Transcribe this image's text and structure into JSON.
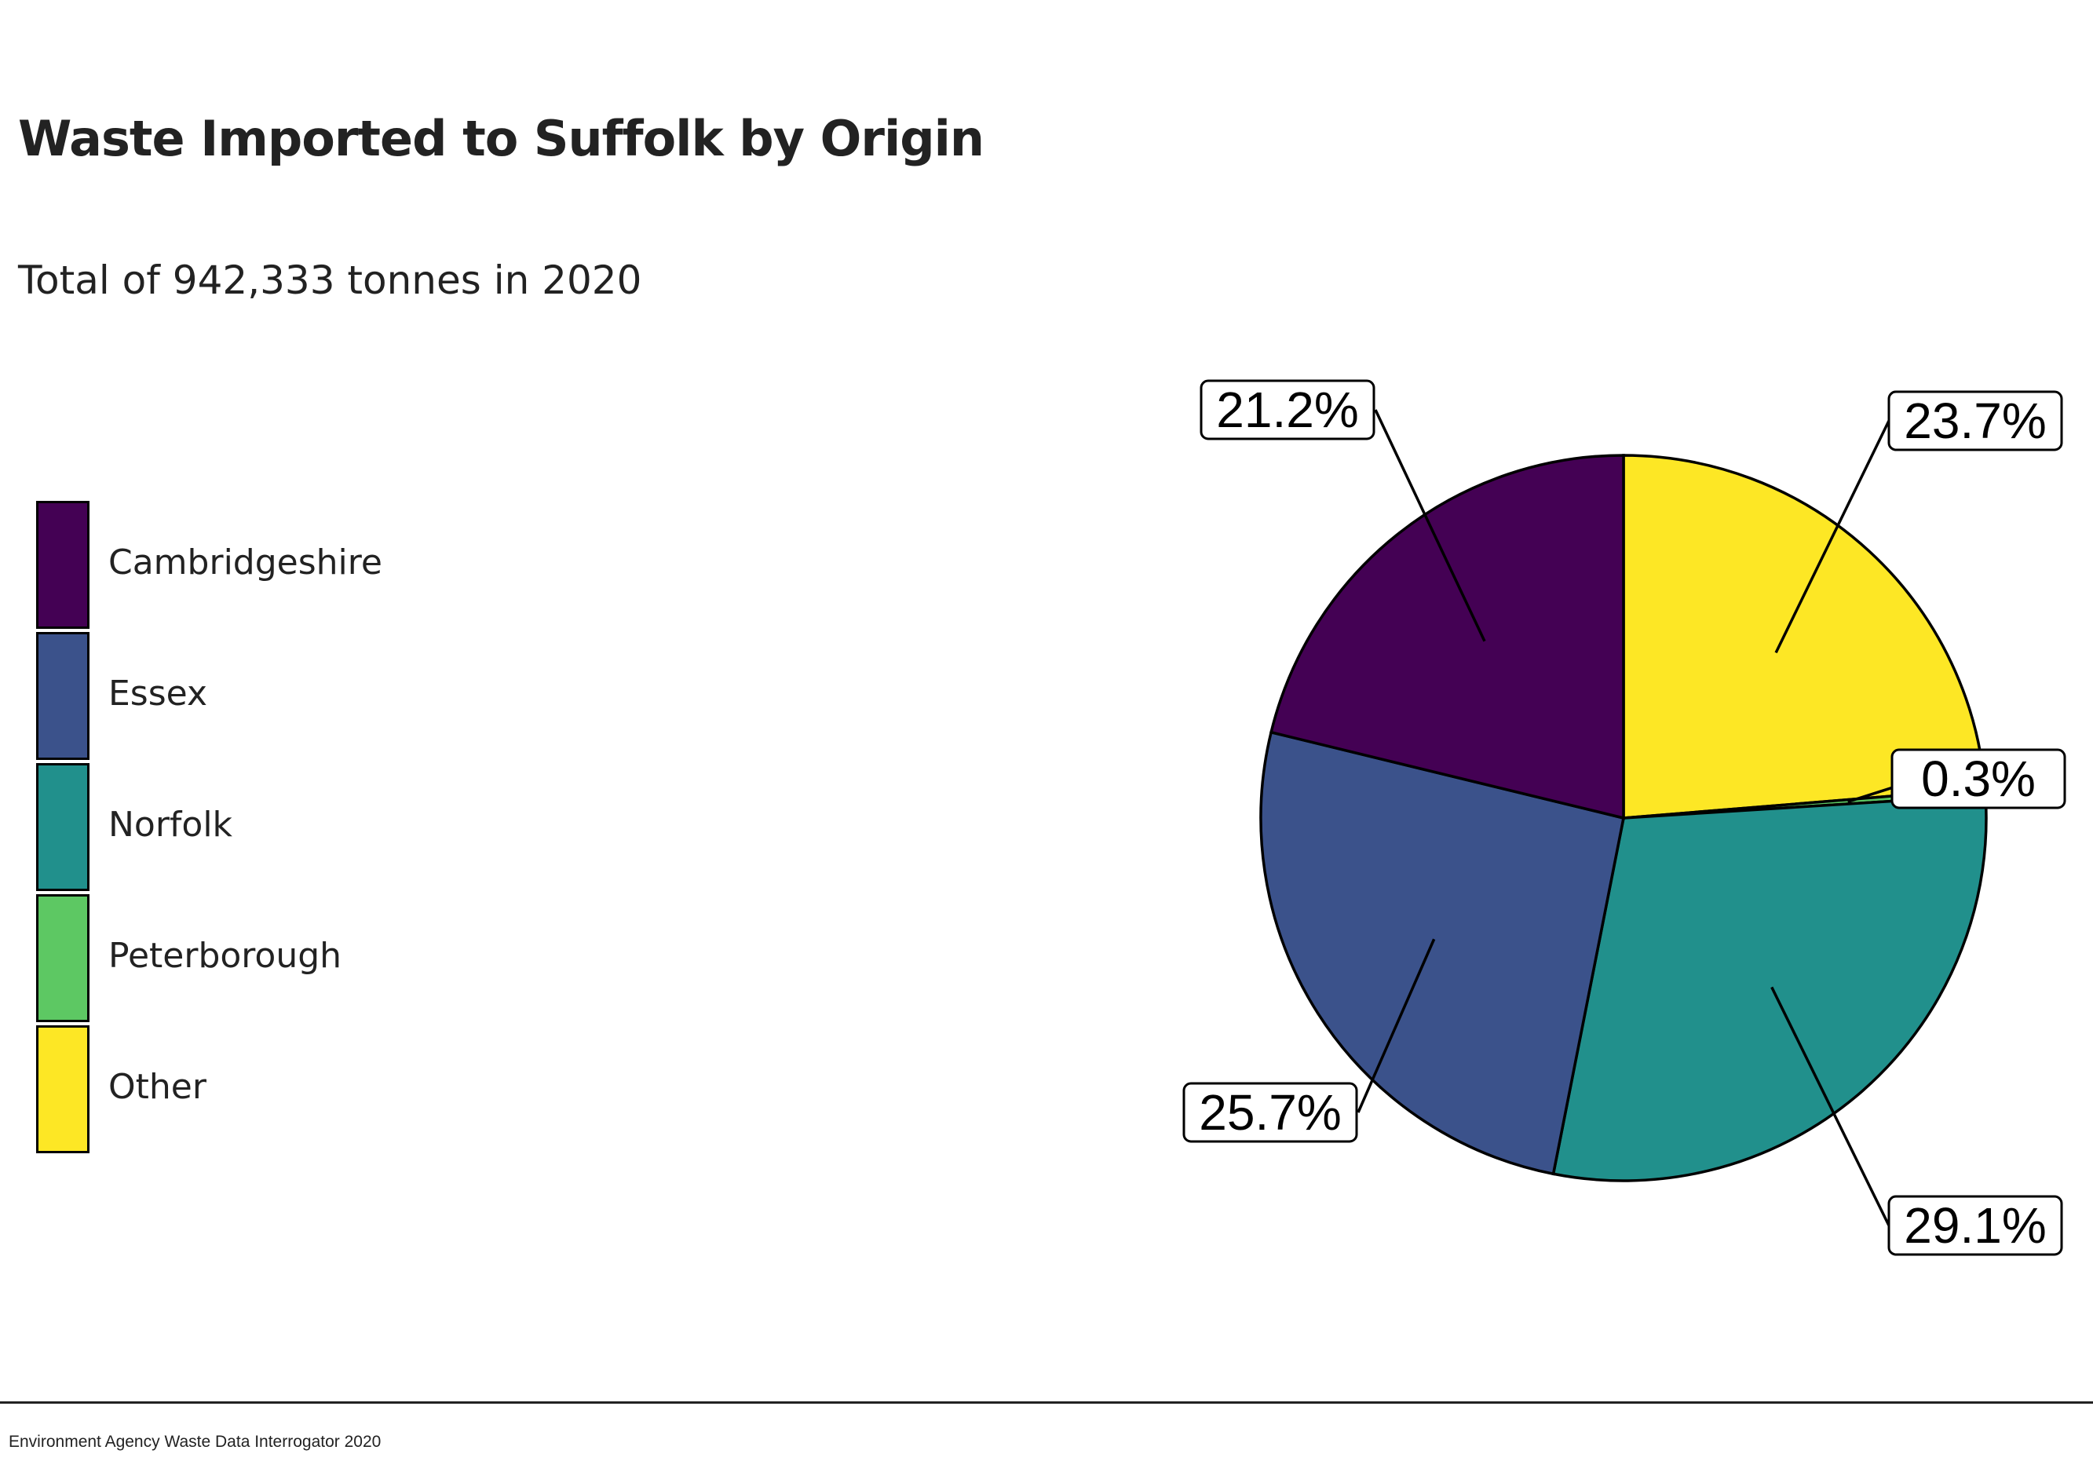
{
  "chart_data": {
    "type": "pie",
    "title": "Waste Imported to Suffolk by Origin",
    "subtitle": "Total of 942,333 tonnes in 2020",
    "categories": [
      "Cambridgeshire",
      "Essex",
      "Norfolk",
      "Peterborough",
      "Other"
    ],
    "values": [
      21.2,
      25.7,
      29.1,
      0.3,
      23.7
    ],
    "labels": [
      "21.2%",
      "25.7%",
      "29.1%",
      "0.3%",
      "23.7%"
    ],
    "colors": [
      "#440154",
      "#3b528b",
      "#21908c",
      "#5dc863",
      "#fde725"
    ],
    "legend_position": "left"
  },
  "footer": {
    "source": "Environment Agency Waste Data Interrogator 2020"
  }
}
